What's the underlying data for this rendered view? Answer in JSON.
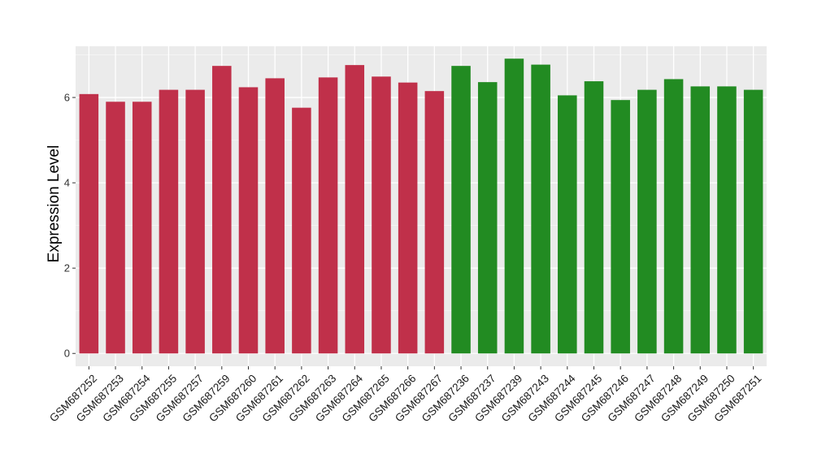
{
  "chart_data": {
    "type": "bar",
    "ylabel": "Expression Level",
    "xlabel": "",
    "ylim": [
      -0.3,
      7.2
    ],
    "yticks": [
      0,
      2,
      4,
      6
    ],
    "grid": true,
    "background": "#EBEBEB",
    "categories": [
      "GSM687252",
      "GSM687253",
      "GSM687254",
      "GSM687255",
      "GSM687257",
      "GSM687259",
      "GSM687260",
      "GSM687261",
      "GSM687262",
      "GSM687263",
      "GSM687264",
      "GSM687265",
      "GSM687266",
      "GSM687267",
      "GSM687236",
      "GSM687237",
      "GSM687239",
      "GSM687243",
      "GSM687244",
      "GSM687245",
      "GSM687246",
      "GSM687247",
      "GSM687248",
      "GSM687249",
      "GSM687250",
      "GSM687251"
    ],
    "values": [
      6.08,
      5.9,
      5.9,
      6.18,
      6.18,
      6.74,
      6.24,
      6.45,
      5.76,
      6.47,
      6.76,
      6.49,
      6.35,
      6.15,
      6.74,
      6.36,
      6.91,
      6.77,
      6.05,
      6.38,
      5.94,
      6.18,
      6.43,
      6.26,
      6.26,
      6.18
    ],
    "bar_colors": [
      "#C0304A",
      "#C0304A",
      "#C0304A",
      "#C0304A",
      "#C0304A",
      "#C0304A",
      "#C0304A",
      "#C0304A",
      "#C0304A",
      "#C0304A",
      "#C0304A",
      "#C0304A",
      "#C0304A",
      "#C0304A",
      "#228B22",
      "#228B22",
      "#228B22",
      "#228B22",
      "#228B22",
      "#228B22",
      "#228B22",
      "#228B22",
      "#228B22",
      "#228B22",
      "#228B22",
      "#228B22"
    ]
  }
}
